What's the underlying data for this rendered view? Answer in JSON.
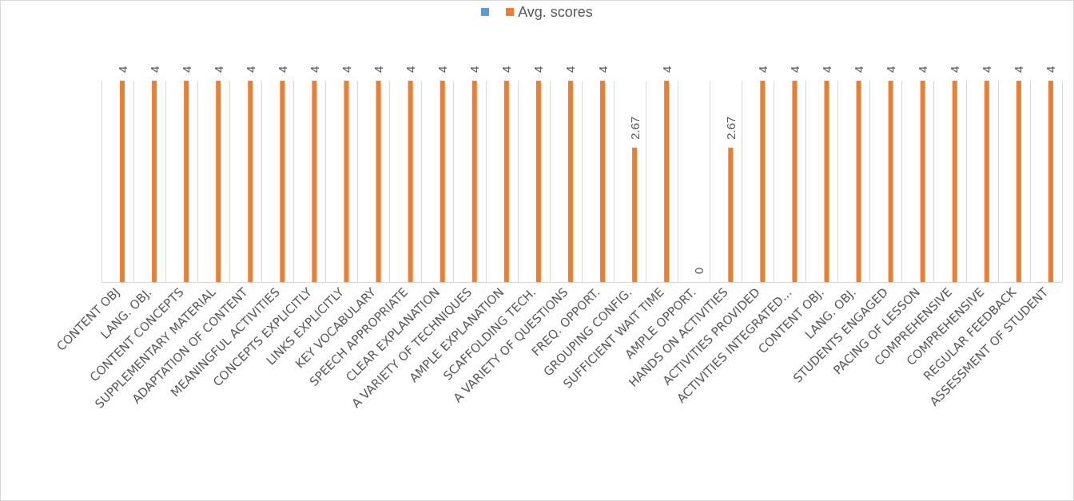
{
  "chart_data": {
    "type": "bar",
    "categories": [
      "CONTENT OBJ",
      "LANG. OBJ.",
      "CONTENT CONCEPTS",
      "SUPPLEMENTARY MATERIAL",
      "ADAPTATION OF CONTENT",
      "MEANINGFUL ACTIVITIES",
      "CONCEPTS EXPLICITLY",
      "LINKS EXPLICITLY",
      "KEY VOCABULARY",
      "SPEECH APPROPRIATE",
      "CLEAR EXPLANATION",
      "A VARIETY OF TECHNIQUES",
      "AMPLE EXPLANATION",
      "SCAFFOLDING TECH.",
      "A VARIETY OF QUESTIONS",
      "FREQ. OPPORT.",
      "GROUPING CONFIG.",
      "SUFFICIENT WAIT TIME",
      "AMPLE OPPORT.",
      "HANDS ON ACTIVITIES",
      "ACTIVITIES PROVIDED",
      "ACTIVITIES INTEGRATED…",
      "CONTENT OBJ.",
      "LANG. OBJ.",
      "STUDENTS ENGAGED",
      "PACING OF LESSON",
      "COMPREHENSIVE",
      "COMPREHENSIVE",
      "REGULAR FEEDBACK",
      "ASSESSMENT OF STUDENT"
    ],
    "series": [
      {
        "color": "#5b9bd5",
        "values": [
          null,
          null,
          null,
          null,
          null,
          null,
          null,
          null,
          null,
          null,
          null,
          null,
          null,
          null,
          null,
          null,
          null,
          null,
          null,
          null,
          null,
          null,
          null,
          null,
          null,
          null,
          null,
          null,
          null,
          null
        ]
      },
      {
        "name": "Avg. scores",
        "color": "#ed7d31",
        "values": [
          4,
          4,
          4,
          4,
          4,
          4,
          4,
          4,
          4,
          4,
          4,
          4,
          4,
          4,
          4,
          4,
          2.67,
          4,
          0,
          2.67,
          4,
          4,
          4,
          4,
          4,
          4,
          4,
          4,
          4,
          4
        ]
      }
    ],
    "data_labels": true,
    "grid": "x",
    "legend": "top"
  }
}
